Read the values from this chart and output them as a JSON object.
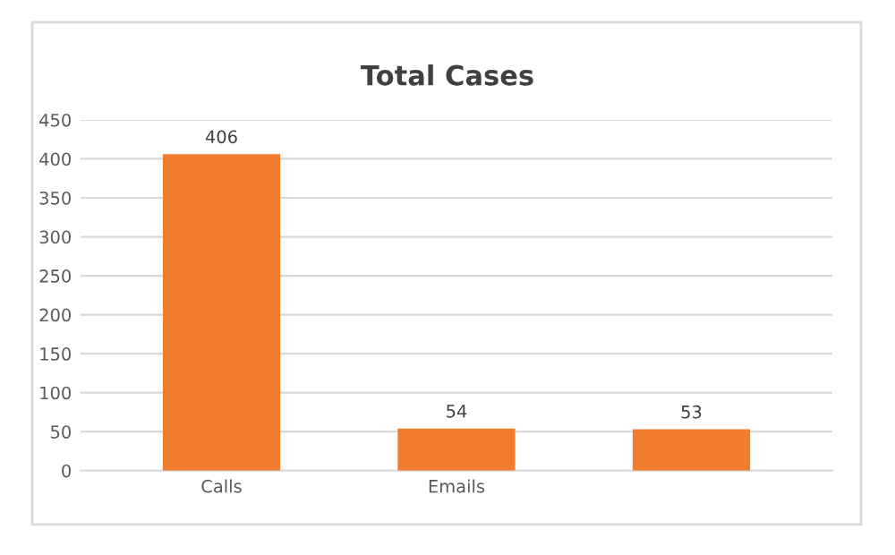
{
  "chart_data": {
    "type": "bar",
    "title": "Total Cases",
    "categories": [
      "Calls",
      "Emails",
      null
    ],
    "values": [
      406,
      54,
      53
    ],
    "color": "#f07c2e",
    "ylim": [
      0,
      450
    ],
    "yticks": [
      0,
      50,
      100,
      150,
      200,
      250,
      300,
      350,
      400,
      450
    ],
    "grid": "y",
    "data_labels": true
  }
}
